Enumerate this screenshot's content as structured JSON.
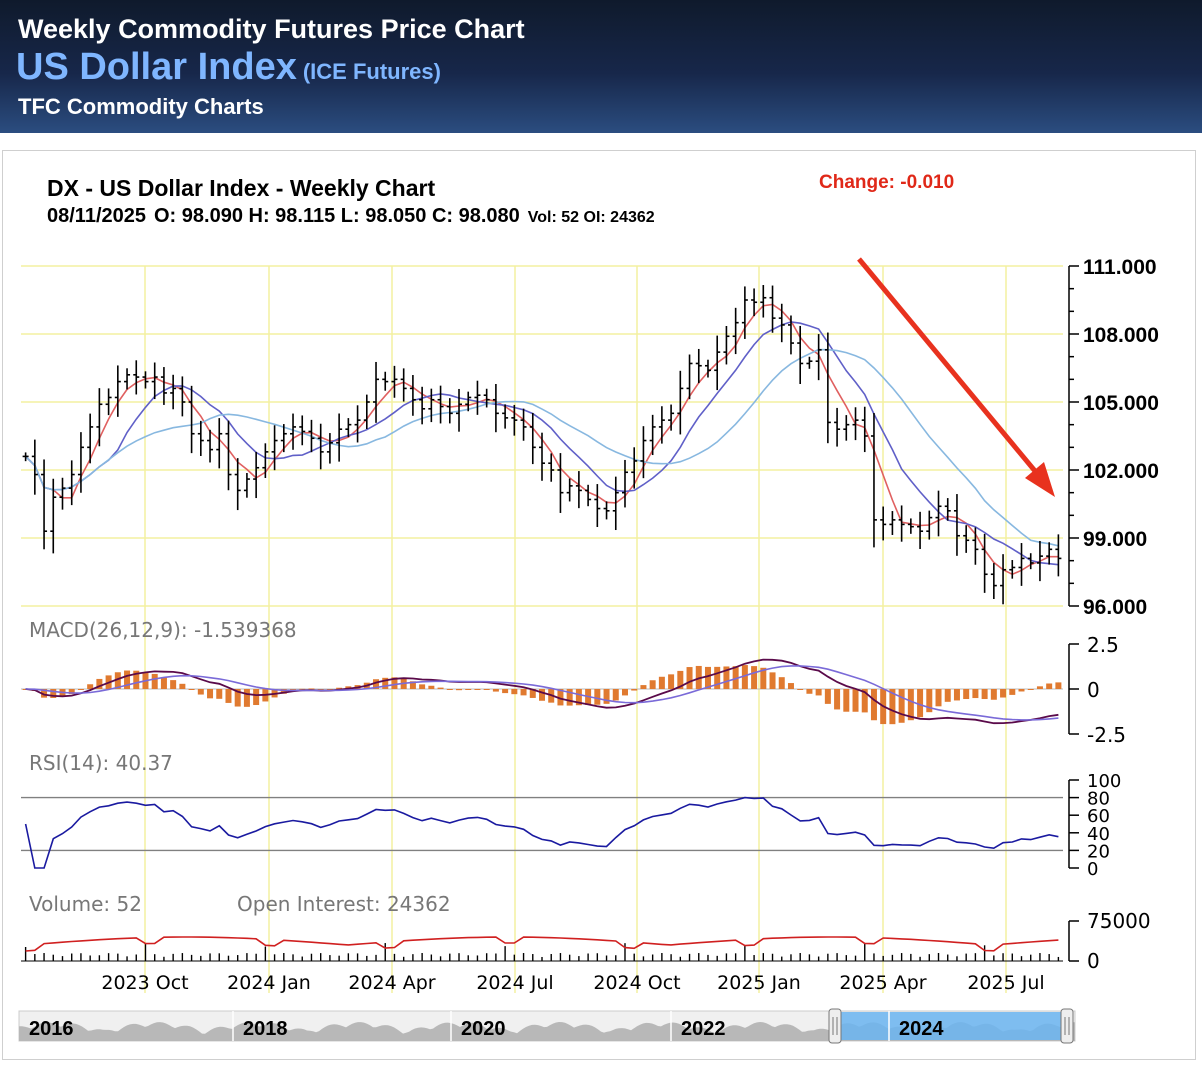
{
  "header": {
    "title": "Weekly Commodity Futures Price Chart",
    "name": "US Dollar Index",
    "exchange": "(ICE Futures)",
    "provider": "TFC Commodity Charts"
  },
  "chart_info": {
    "title": "DX - US Dollar Index - Weekly Chart",
    "date": "08/11/2025",
    "ohlc": "O: 98.090 H: 98.115 L: 98.050 C: 98.080",
    "volume_oi": "Vol: 52 OI: 24362",
    "change": "Change: -0.010"
  },
  "colors": {
    "price_bar": "#000000",
    "ma_fast": "#e06060",
    "ma_mid": "#6060c8",
    "ma_slow": "#88b8e0",
    "macd_line": "#5a0a4a",
    "macd_signal": "#7a6ad8",
    "macd_hist": "#e07a30",
    "rsi_line": "#1a1aa0",
    "volume_bar": "#000000",
    "oi_line": "#d02020",
    "arrow": "#e8321e",
    "grid": "#f4f0a0",
    "navigator_highlight": "#6ab4f0"
  },
  "chart_data": [
    {
      "type": "candlestick",
      "x_labels": [
        "2023 Oct",
        "2024 Jan",
        "2024 Apr",
        "2024 Jul",
        "2024 Oct",
        "2025 Jan",
        "2025 Apr",
        "2025 Jul"
      ],
      "y_ticks": [
        "111.000",
        "108.000",
        "105.000",
        "102.000",
        "99.000",
        "96.000"
      ],
      "ylim": [
        96,
        111
      ],
      "close": [
        102.6,
        101.8,
        99.3,
        100.8,
        101.2,
        101.8,
        103.0,
        103.9,
        104.9,
        105.2,
        105.9,
        106.2,
        106.1,
        105.9,
        106.1,
        105.4,
        105.6,
        105.0,
        103.6,
        103.3,
        102.9,
        103.6,
        101.8,
        101.1,
        101.6,
        102.1,
        102.8,
        103.3,
        103.6,
        103.9,
        103.7,
        103.4,
        102.8,
        103.2,
        103.8,
        104.0,
        104.2,
        105.0,
        106.0,
        105.9,
        106.0,
        105.6,
        105.1,
        104.7,
        105.1,
        104.8,
        104.5,
        104.9,
        105.2,
        105.3,
        105.1,
        104.5,
        104.3,
        104.2,
        103.9,
        103.0,
        102.3,
        102.0,
        101.0,
        101.3,
        101.1,
        100.7,
        100.3,
        100.2,
        101.0,
        101.9,
        102.4,
        103.3,
        103.9,
        104.2,
        104.5,
        105.6,
        106.7,
        106.6,
        106.4,
        107.2,
        107.9,
        108.5,
        109.5,
        109.4,
        109.6,
        108.7,
        108.4,
        107.6,
        106.7,
        106.8,
        107.3,
        104.1,
        103.8,
        104.0,
        104.2,
        103.5,
        99.8,
        99.6,
        99.8,
        99.6,
        99.5,
        99.3,
        99.9,
        100.4,
        100.2,
        99.1,
        98.9,
        98.5,
        97.4,
        96.9,
        97.6,
        97.7,
        98.1,
        97.9,
        98.2,
        98.5,
        98.1
      ],
      "ma_series": [
        "fast",
        "mid",
        "slow"
      ]
    },
    {
      "type": "line",
      "label": "MACD(26,12,9): -1.539368",
      "y_ticks": [
        "2.5",
        "0",
        "-2.5"
      ],
      "ylim": [
        -2.5,
        2.5
      ],
      "series": [
        "macd",
        "signal",
        "histogram"
      ]
    },
    {
      "type": "line",
      "label": "RSI(14): 40.37",
      "y_ticks": [
        "100",
        "80",
        "60",
        "40",
        "20",
        "0"
      ],
      "ylim": [
        0,
        100
      ]
    },
    {
      "type": "bar",
      "label_volume": "Volume: 52",
      "label_oi": "Open Interest: 24362",
      "y_ticks": [
        "75000",
        "0"
      ]
    },
    {
      "type": "area",
      "navigator_labels": [
        "2016",
        "2018",
        "2020",
        "2022",
        "2024"
      ]
    }
  ]
}
